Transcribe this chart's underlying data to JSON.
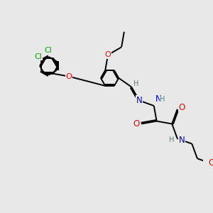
{
  "background_color": "#e8e8e8",
  "atom_colors": {
    "C": "#000000",
    "N": "#0000cd",
    "O": "#ff0000",
    "Cl": "#00aa00",
    "H": "#4a8080"
  },
  "bond_color": "#000000",
  "figure_size": [
    3.0,
    3.0
  ],
  "dpi": 100,
  "bond_lw": 1.4,
  "font_size": 7.5
}
